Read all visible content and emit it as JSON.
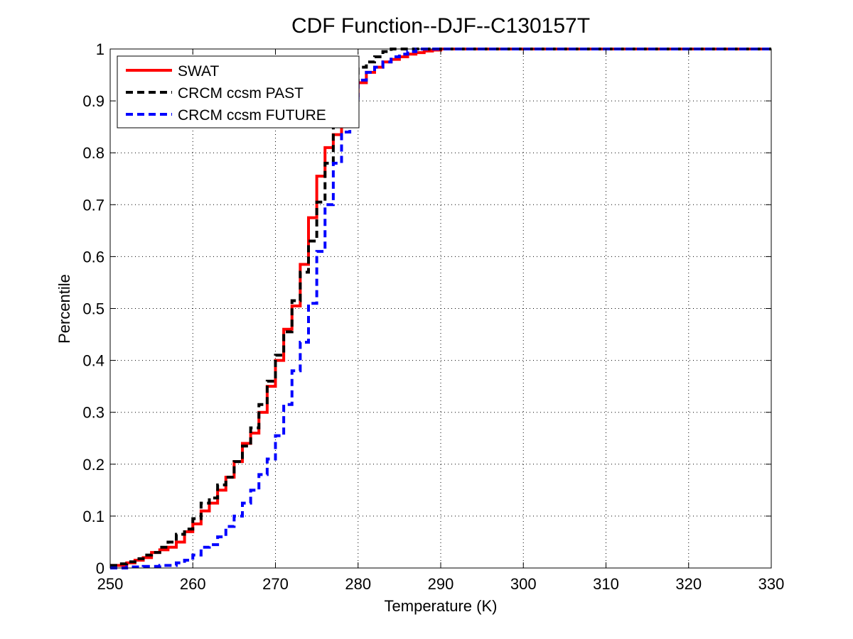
{
  "chart_data": {
    "type": "line",
    "title": "CDF Function--DJF--C130157T",
    "xlabel": "Temperature (K)",
    "ylabel": "Percentile",
    "xlim": [
      250,
      330
    ],
    "ylim": [
      0,
      1
    ],
    "xticks": [
      "250",
      "260",
      "270",
      "280",
      "290",
      "300",
      "310",
      "320",
      "330"
    ],
    "yticks": [
      "0",
      "0.1",
      "0.2",
      "0.3",
      "0.4",
      "0.5",
      "0.6",
      "0.7",
      "0.8",
      "0.9",
      "1"
    ],
    "grid": true,
    "legend_position": "top-left",
    "series": [
      {
        "name": "SWAT",
        "color": "#ff0000",
        "style": "solid",
        "x": [
          250,
          252,
          253,
          254,
          255,
          256,
          257,
          258,
          259,
          260,
          261,
          262,
          263,
          264,
          265,
          266,
          267,
          268,
          269,
          270,
          271,
          272,
          273,
          274,
          275,
          276,
          277,
          278,
          279,
          280,
          281,
          282,
          283,
          284,
          285,
          286,
          287,
          288,
          289,
          290,
          330
        ],
        "y": [
          0.005,
          0.01,
          0.015,
          0.02,
          0.03,
          0.035,
          0.04,
          0.05,
          0.07,
          0.085,
          0.11,
          0.125,
          0.15,
          0.175,
          0.205,
          0.24,
          0.26,
          0.3,
          0.35,
          0.4,
          0.46,
          0.505,
          0.585,
          0.675,
          0.755,
          0.81,
          0.835,
          0.87,
          0.91,
          0.935,
          0.955,
          0.965,
          0.975,
          0.98,
          0.985,
          0.99,
          0.993,
          0.996,
          0.998,
          1.0,
          1.0
        ]
      },
      {
        "name": "CRCM ccsm PAST",
        "color": "#000000",
        "style": "dashed",
        "x": [
          250,
          251,
          252,
          253,
          254,
          255,
          256,
          257,
          258,
          259,
          260,
          261,
          262,
          263,
          264,
          265,
          266,
          267,
          268,
          269,
          270,
          271,
          272,
          273,
          274,
          275,
          276,
          277,
          278,
          279,
          280,
          281,
          282,
          283,
          284,
          330
        ],
        "y": [
          0.005,
          0.008,
          0.012,
          0.018,
          0.025,
          0.03,
          0.04,
          0.05,
          0.065,
          0.075,
          0.095,
          0.125,
          0.135,
          0.16,
          0.175,
          0.205,
          0.235,
          0.27,
          0.315,
          0.36,
          0.41,
          0.455,
          0.515,
          0.57,
          0.63,
          0.705,
          0.78,
          0.86,
          0.9,
          0.94,
          0.965,
          0.975,
          0.985,
          0.995,
          1.0,
          1.0
        ]
      },
      {
        "name": "CRCM ccsm FUTURE",
        "color": "#0000ff",
        "style": "dashed",
        "x": [
          250,
          252,
          254,
          256,
          258,
          259,
          260,
          261,
          262,
          263,
          264,
          265,
          266,
          267,
          268,
          269,
          270,
          271,
          272,
          273,
          274,
          275,
          276,
          277,
          278,
          279,
          280,
          281,
          282,
          283,
          284,
          285,
          286,
          287,
          330
        ],
        "y": [
          0.0,
          0.002,
          0.003,
          0.005,
          0.01,
          0.015,
          0.025,
          0.04,
          0.045,
          0.06,
          0.08,
          0.1,
          0.125,
          0.15,
          0.18,
          0.21,
          0.255,
          0.315,
          0.38,
          0.435,
          0.51,
          0.61,
          0.7,
          0.78,
          0.84,
          0.9,
          0.94,
          0.955,
          0.965,
          0.975,
          0.985,
          0.99,
          0.995,
          1.0,
          1.0
        ]
      }
    ]
  }
}
